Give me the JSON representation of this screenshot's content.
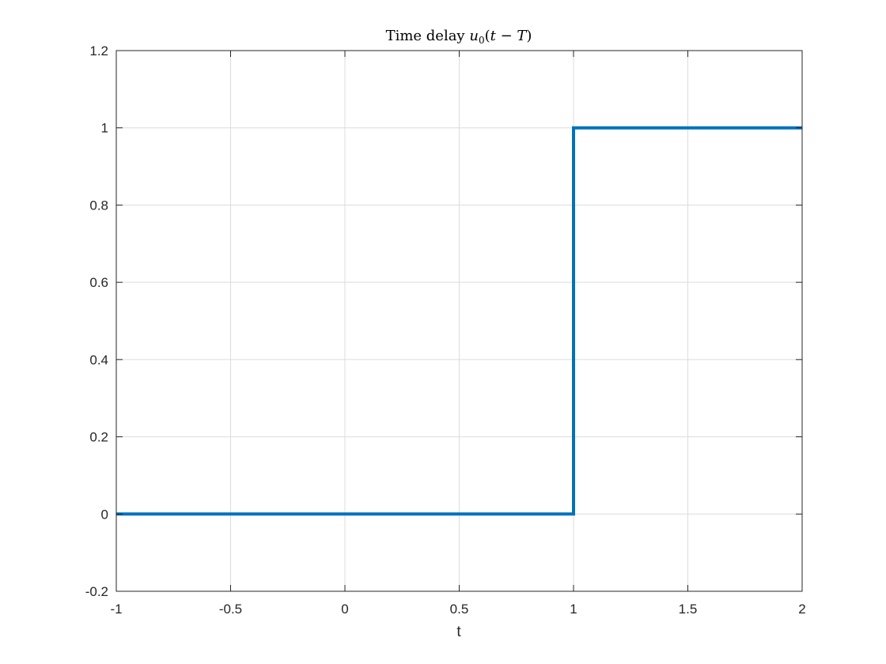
{
  "chart_data": {
    "type": "line",
    "title": "Time delay",
    "title_math": {
      "func": "u",
      "subscript": "0",
      "argument_open": "(",
      "argument_var": "t",
      "argument_op": " − ",
      "argument_param": "T",
      "argument_close": ")"
    },
    "xlabel": "t",
    "ylabel": "",
    "xlim": [
      -1,
      2
    ],
    "ylim": [
      -0.2,
      1.2
    ],
    "xticks": [
      -1,
      -0.5,
      0,
      0.5,
      1,
      1.5,
      2
    ],
    "xtick_labels": [
      "-1",
      "-0.5",
      "0",
      "0.5",
      "1",
      "1.5",
      "2"
    ],
    "yticks": [
      -0.2,
      0,
      0.2,
      0.4,
      0.6,
      0.8,
      1,
      1.2
    ],
    "ytick_labels": [
      "-0.2",
      "0",
      "0.2",
      "0.4",
      "0.6",
      "0.8",
      "1",
      "1.2"
    ],
    "grid": true,
    "series": [
      {
        "x": [
          -1,
          1,
          1,
          2
        ],
        "y": [
          0,
          0,
          1,
          1
        ],
        "color": "#0072BD"
      }
    ]
  }
}
